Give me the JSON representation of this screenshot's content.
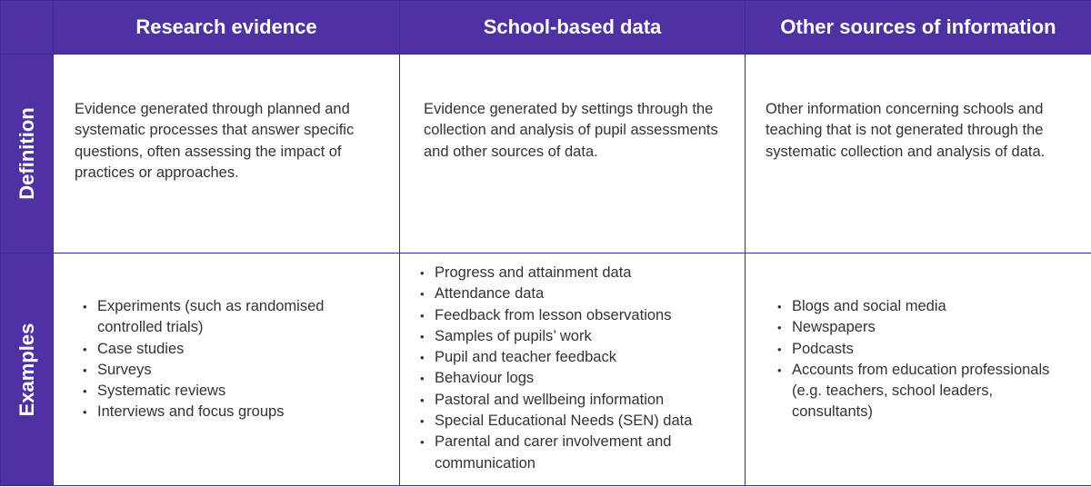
{
  "table": {
    "columns": [
      "Research evidence",
      "School-based data",
      "Other sources of information"
    ],
    "rows": {
      "definition": {
        "label": "Definition",
        "cells": [
          "Evidence generated through planned and systematic processes that answer specific questions, often assessing the impact of practices or approaches.",
          "Evidence generated by settings through the collection and analysis of pupil assessments and other sources of data.",
          "Other information concerning schools and teaching that is not generated through the systematic collection and analysis of data."
        ]
      },
      "examples": {
        "label": "Examples",
        "research": [
          "Experiments (such as randomised controlled trials)",
          "Case studies",
          "Surveys",
          "Systematic reviews",
          "Interviews and focus groups"
        ],
        "school": [
          "Progress and attainment data",
          "Attendance data",
          "Feedback from lesson observations",
          "Samples of pupils’ work",
          "Pupil and teacher feedback",
          "Behaviour logs",
          "Pastoral and wellbeing information",
          "Special Educational Needs (SEN) data",
          "Parental and carer involvement and communication"
        ],
        "other": [
          "Blogs and social media",
          "Newspapers",
          "Podcasts",
          "Accounts from education professionals (e.g. teachers, school leaders, consultants)"
        ]
      }
    }
  },
  "colors": {
    "header_bg": "#4e32a4",
    "border": "#3b2b8f",
    "text": "#333333"
  }
}
